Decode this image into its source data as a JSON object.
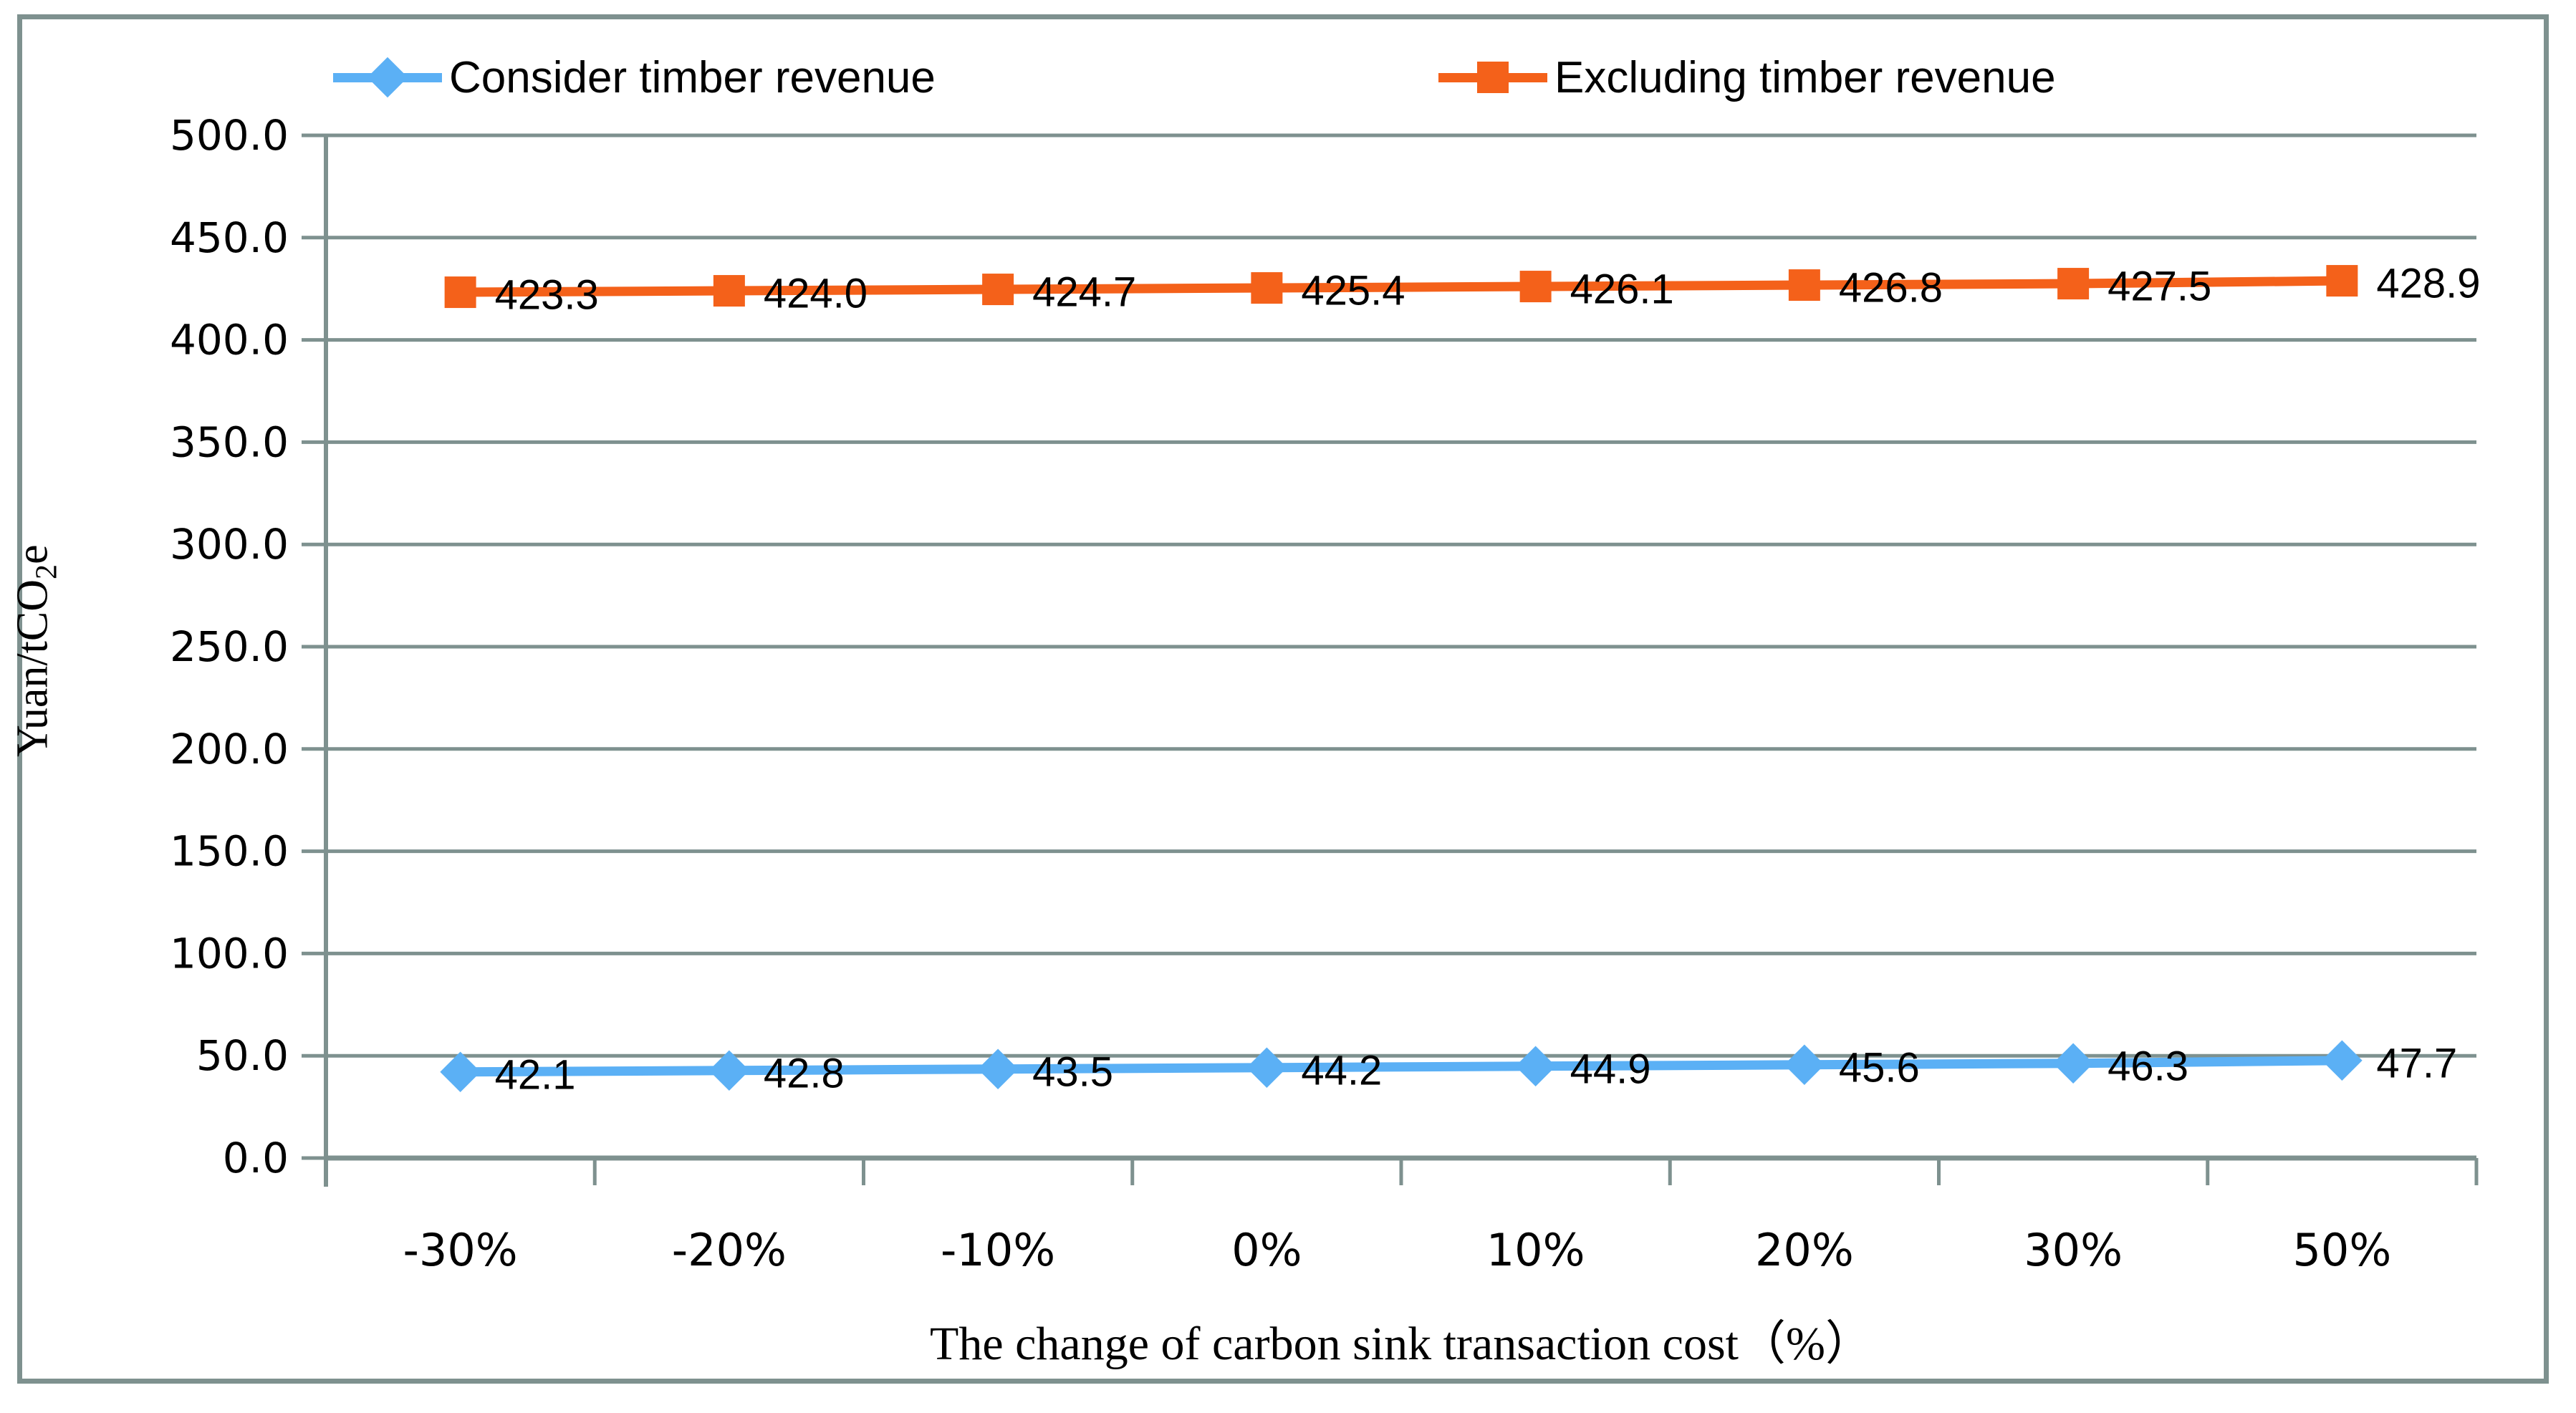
{
  "legend": {
    "series1_label": "Consider timber revenue",
    "series2_label": "Excluding timber revenue"
  },
  "y_axis": {
    "title_prefix": "Yuan/tCO",
    "title_sub": "2",
    "title_suffix": "e",
    "tick_labels": [
      "0.0",
      "50.0",
      "100.0",
      "150.0",
      "200.0",
      "250.0",
      "300.0",
      "350.0",
      "400.0",
      "450.0",
      "500.0"
    ]
  },
  "x_axis": {
    "title": "The change of carbon sink transaction cost（%）"
  },
  "chart_data": {
    "type": "line",
    "title": "",
    "categories": [
      "-30%",
      "-20%",
      "-10%",
      "0%",
      "10%",
      "20%",
      "30%",
      "50%"
    ],
    "series": [
      {
        "name": "Consider timber revenue",
        "color": "#5bb0f5",
        "marker": "diamond",
        "values": [
          42.1,
          42.8,
          43.5,
          44.2,
          44.9,
          45.6,
          46.3,
          47.7
        ]
      },
      {
        "name": "Excluding timber revenue",
        "color": "#f4611a",
        "marker": "square",
        "values": [
          423.3,
          424.0,
          424.7,
          425.4,
          426.1,
          426.8,
          427.5,
          428.9
        ]
      }
    ],
    "xlabel": "The change of carbon sink transaction cost（%）",
    "ylabel": "Yuan/tCO2e",
    "ylim": [
      0,
      500
    ],
    "ytick_step": 50,
    "grid": true,
    "legend_position": "top",
    "data_labels": true
  },
  "colors": {
    "grid_axis": "#7e918f",
    "frame": "#7e918f",
    "series1": "#5bb0f5",
    "series2": "#f4611a",
    "text": "#000000"
  }
}
